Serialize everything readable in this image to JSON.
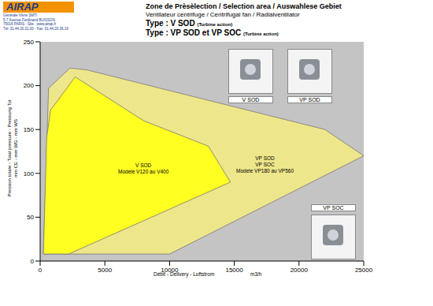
{
  "chart_data": {
    "type": "area",
    "title": "Zone de Prèsèlection / Selection area / Auswahlese Gebiet",
    "subtitle": [
      "Ventilateur centrifuge / Centrifugal fan / Radialventilator",
      "Type : V SOD",
      "(Turbine action)",
      "Type : VP SOD et VP SOC",
      "(Turbine action)"
    ],
    "x_label": [
      "Débit - Delivery - Luftstrom",
      "m3/h"
    ],
    "y_label": [
      "Pression totale - Total pressure - Pressung Tot",
      "mm CE - mm WG - mm WS"
    ],
    "xlim": [
      0,
      25000
    ],
    "xticks": [
      0,
      5000,
      10000,
      15000,
      20000,
      25000
    ],
    "ylim": [
      0,
      250
    ],
    "yticks": [
      0,
      50,
      100,
      150,
      200,
      250
    ],
    "grid": false,
    "series": [
      {
        "labels": [
          "VP SOD",
          "VP SOC",
          "Modele VP180 au VP560"
        ],
        "color": "#eee68a",
        "x": [
          250,
          650,
          2300,
          3600,
          22000,
          25000,
          10000
        ],
        "y": [
          8,
          197,
          220,
          218,
          150,
          120,
          8
        ]
      },
      {
        "labels": [
          "V SOD",
          "Modele V120 au V400"
        ],
        "color": "#ffff22",
        "x": [
          250,
          500,
          800,
          2700,
          8000,
          13000,
          14700,
          2200
        ],
        "y": [
          8,
          140,
          172,
          210,
          160,
          131,
          90,
          8
        ]
      }
    ],
    "logo": "AIRAP",
    "address": [
      "Générale Vlsne SMTI",
      "5-7 Avenue Ferdinand BUISSON",
      "75016 PARIS - Site : www.airap.fr",
      "Tél: 01.44.20.31.00 - Fax: 01.44.20.36.19"
    ],
    "photos": [
      "V SOD",
      "VP SOD",
      "VP SOC"
    ]
  }
}
